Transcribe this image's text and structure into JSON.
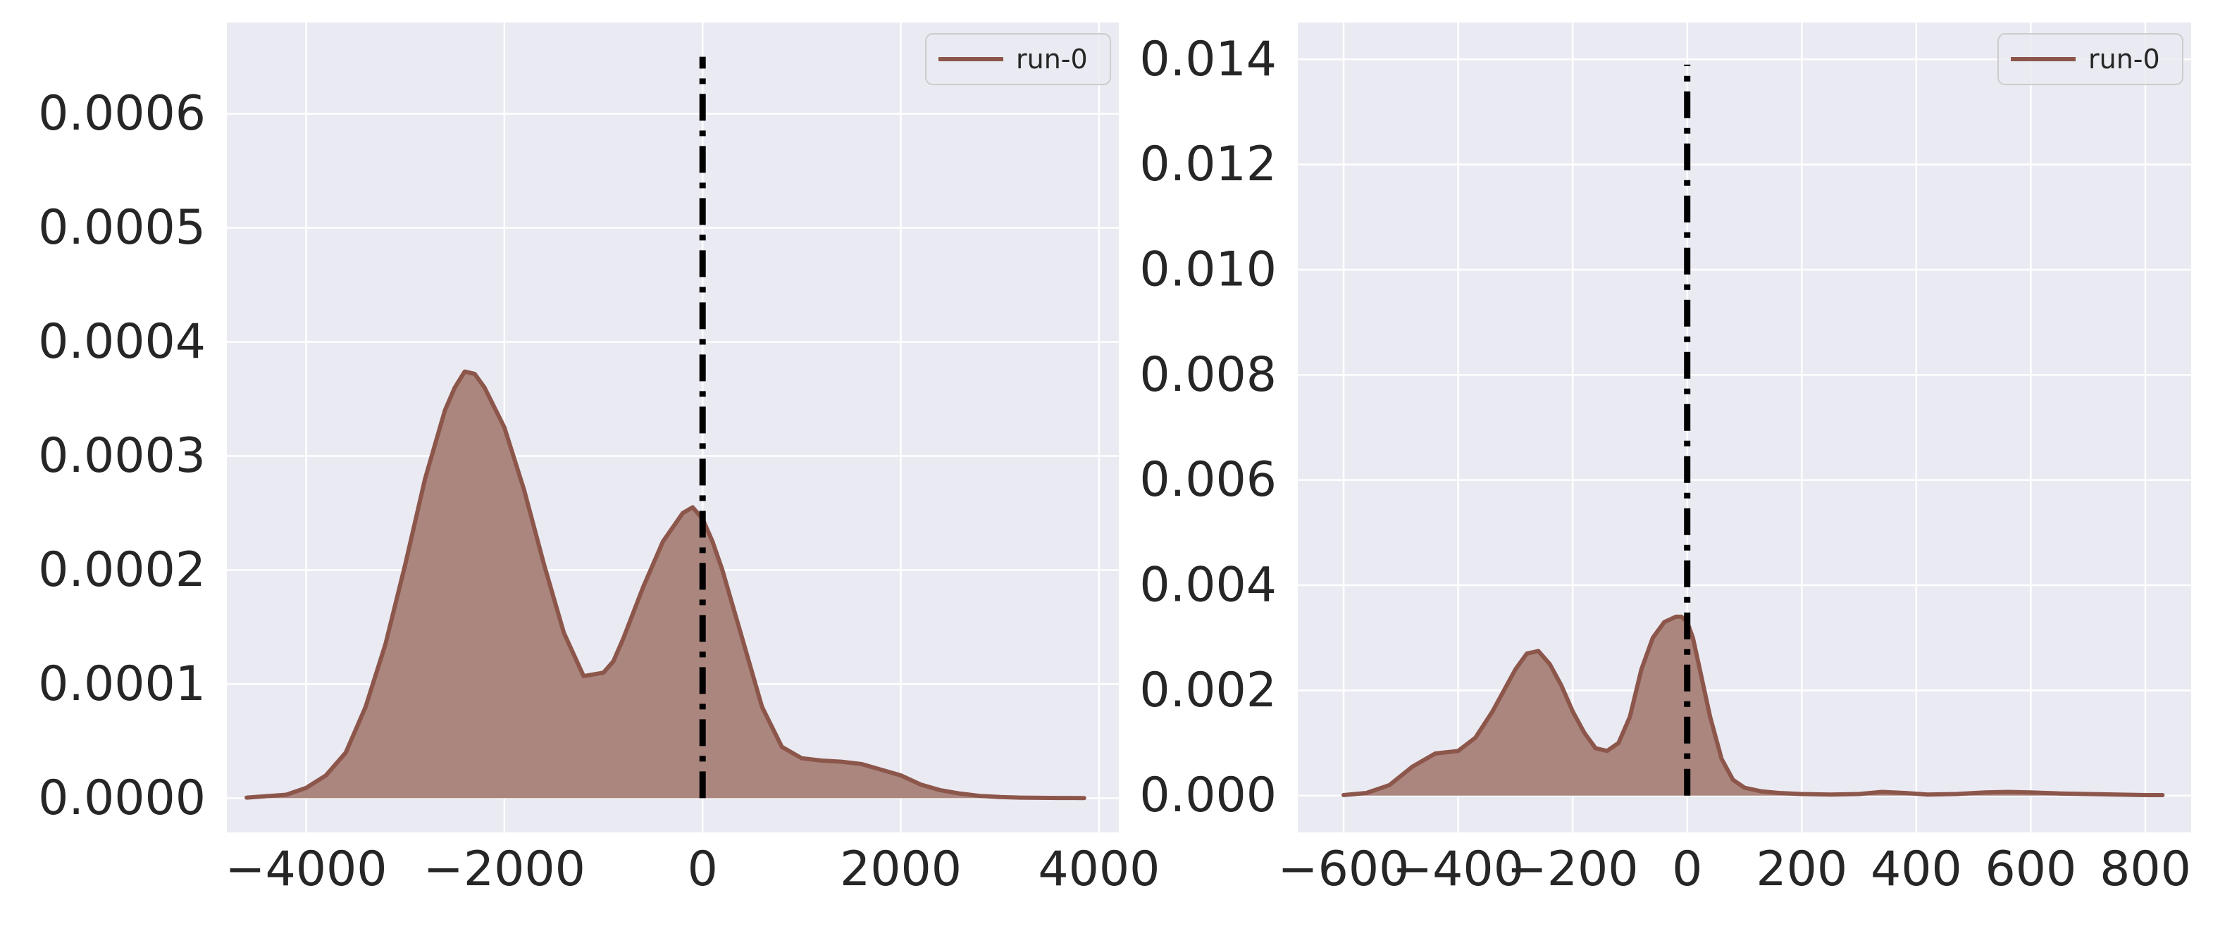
{
  "colors": {
    "plot_bg": "#eaeaf2",
    "grid": "#ffffff",
    "series": "#8c564b",
    "fill": "#ab867e",
    "vline": "#000000",
    "text": "#262626"
  },
  "chart_data": [
    {
      "type": "area",
      "title": "",
      "xlabel": "",
      "ylabel": "",
      "grid": true,
      "legend": {
        "position": "top-right",
        "entries": [
          "run-0"
        ]
      },
      "xlim": [
        -4800,
        4200
      ],
      "ylim": [
        -3e-05,
        0.00068
      ],
      "xticks": [
        -4000,
        -2000,
        0,
        2000,
        4000
      ],
      "xtick_labels": [
        "−4000",
        "−2000",
        "0",
        "2000",
        "4000"
      ],
      "yticks": [
        0,
        0.0001,
        0.0002,
        0.0003,
        0.0004,
        0.0005,
        0.0006
      ],
      "ytick_labels": [
        "0.0000",
        "0.0001",
        "0.0002",
        "0.0003",
        "0.0004",
        "0.0005",
        "0.0006"
      ],
      "vline": {
        "x": 0,
        "y_range": [
          0,
          0.00065
        ],
        "style": "dashdot"
      },
      "series": [
        {
          "name": "run-0",
          "x": [
            -4600,
            -4200,
            -4000,
            -3800,
            -3600,
            -3400,
            -3200,
            -3000,
            -2800,
            -2600,
            -2500,
            -2400,
            -2300,
            -2200,
            -2000,
            -1800,
            -1600,
            -1400,
            -1200,
            -1000,
            -900,
            -800,
            -600,
            -400,
            -200,
            -100,
            0,
            100,
            200,
            400,
            600,
            800,
            1000,
            1200,
            1400,
            1600,
            1800,
            2000,
            2200,
            2400,
            2600,
            2800,
            3000,
            3200,
            3400,
            3600,
            3850
          ],
          "values": [
            5e-07,
            3e-06,
            9e-06,
            2e-05,
            4e-05,
            8e-05,
            0.000135,
            0.000205,
            0.00028,
            0.00034,
            0.00036,
            0.000374,
            0.000372,
            0.00036,
            0.000325,
            0.00027,
            0.000205,
            0.000145,
            0.000107,
            0.00011,
            0.00012,
            0.00014,
            0.000185,
            0.000225,
            0.00025,
            0.000255,
            0.000245,
            0.000225,
            0.0002,
            0.00014,
            8e-05,
            4.5e-05,
            3.5e-05,
            3.3e-05,
            3.2e-05,
            3e-05,
            2.5e-05,
            2e-05,
            1.2e-05,
            7e-06,
            4e-06,
            2e-06,
            1e-06,
            5e-07,
            3e-07,
            2e-07,
            1e-07
          ]
        }
      ]
    },
    {
      "type": "area",
      "title": "",
      "xlabel": "",
      "ylabel": "",
      "grid": true,
      "legend": {
        "position": "top-right",
        "entries": [
          "run-0"
        ]
      },
      "xlim": [
        -680,
        880
      ],
      "ylim": [
        -0.0007,
        0.0147
      ],
      "xticks": [
        -600,
        -400,
        -200,
        0,
        200,
        400,
        600,
        800
      ],
      "xtick_labels": [
        "−600",
        "−400",
        "−200",
        "0",
        "200",
        "400",
        "600",
        "800"
      ],
      "yticks": [
        0,
        0.002,
        0.004,
        0.006,
        0.008,
        0.01,
        0.012,
        0.014
      ],
      "ytick_labels": [
        "0.000",
        "0.002",
        "0.004",
        "0.006",
        "0.008",
        "0.010",
        "0.012",
        "0.014"
      ],
      "vline": {
        "x": 0,
        "y_range": [
          0,
          0.0139
        ],
        "style": "dashdot"
      },
      "series": [
        {
          "name": "run-0",
          "x": [
            -600,
            -560,
            -520,
            -480,
            -440,
            -400,
            -370,
            -340,
            -300,
            -280,
            -260,
            -240,
            -220,
            -200,
            -180,
            -160,
            -140,
            -120,
            -100,
            -80,
            -60,
            -40,
            -20,
            -10,
            0,
            10,
            20,
            40,
            60,
            80,
            100,
            130,
            160,
            200,
            250,
            300,
            340,
            380,
            420,
            470,
            520,
            560,
            600,
            650,
            700,
            750,
            800,
            830
          ],
          "values": [
            1e-05,
            5e-05,
            0.0002,
            0.00055,
            0.0008,
            0.00085,
            0.0011,
            0.0016,
            0.0024,
            0.0027,
            0.00275,
            0.0025,
            0.0021,
            0.0016,
            0.0012,
            0.0009,
            0.00085,
            0.001,
            0.0015,
            0.0024,
            0.003,
            0.0033,
            0.0034,
            0.0034,
            0.0033,
            0.003,
            0.0025,
            0.0015,
            0.0007,
            0.0003,
            0.00015,
            8e-05,
            5e-05,
            3e-05,
            2e-05,
            3e-05,
            7e-05,
            5e-05,
            2e-05,
            3e-05,
            6e-05,
            7e-05,
            6e-05,
            4e-05,
            3e-05,
            2e-05,
            1e-05,
            1e-05
          ]
        }
      ]
    }
  ]
}
